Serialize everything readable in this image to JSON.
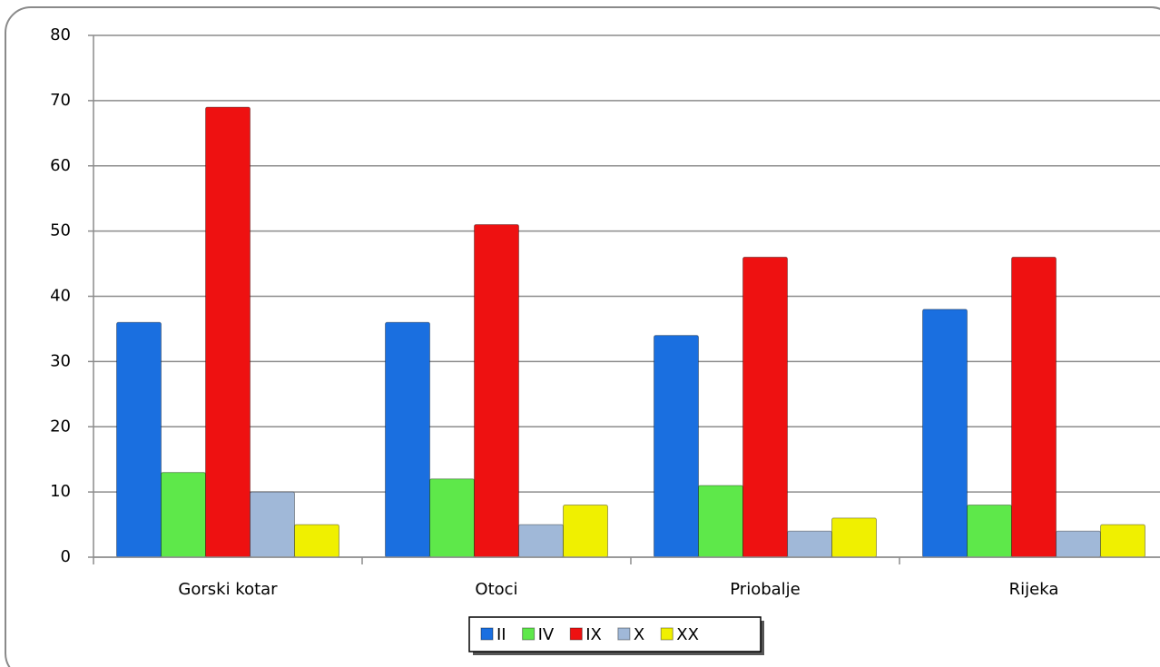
{
  "chart_data": {
    "type": "bar",
    "categories": [
      "Gorski kotar",
      "Otoci",
      "Priobalje",
      "Rijeka"
    ],
    "series": [
      {
        "name": "II",
        "color": "#1a6fe0",
        "values": [
          36,
          36,
          34,
          38
        ]
      },
      {
        "name": "IV",
        "color": "#5ee84a",
        "values": [
          13,
          12,
          11,
          8
        ]
      },
      {
        "name": "IX",
        "color": "#ee1111",
        "values": [
          69,
          51,
          46,
          46
        ]
      },
      {
        "name": "X",
        "color": "#a0b8d8",
        "values": [
          10,
          5,
          4,
          4
        ]
      },
      {
        "name": "XX",
        "color": "#f0f000",
        "values": [
          5,
          8,
          6,
          5
        ]
      }
    ],
    "ylim": [
      0,
      80
    ],
    "yticks": [
      0,
      10,
      20,
      30,
      40,
      50,
      60,
      70,
      80
    ],
    "grid": true,
    "legend": "bottom"
  }
}
